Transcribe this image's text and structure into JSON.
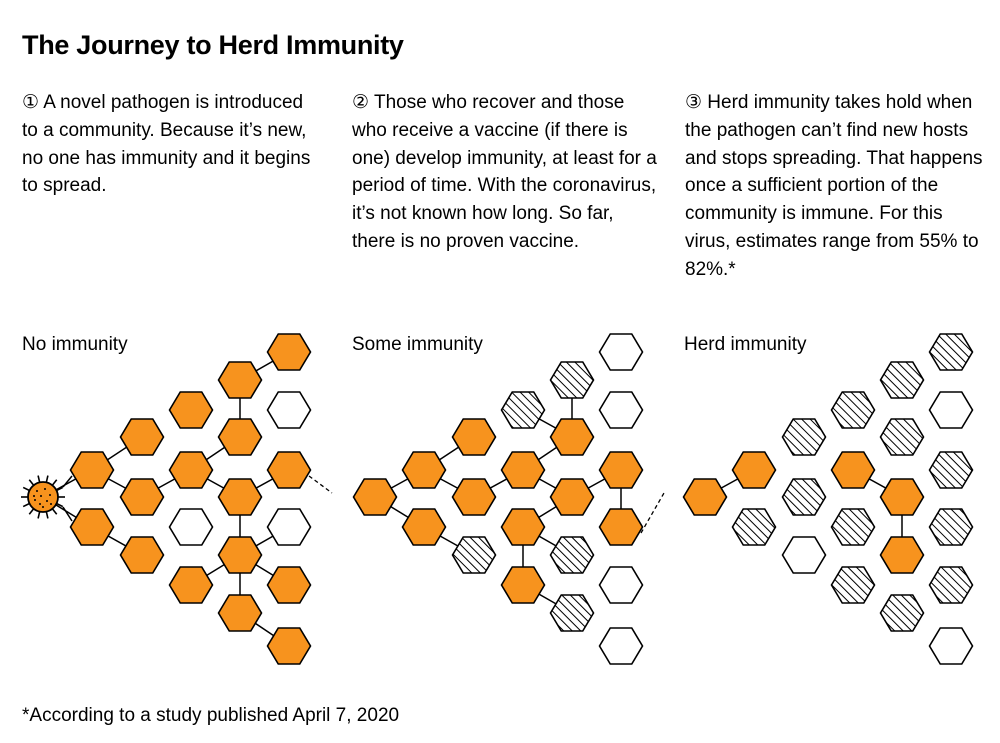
{
  "title": "The Journey to Herd Immunity",
  "steps": [
    {
      "text": "① A novel pathogen is introduced to a community. Because it’s new, no one has immunity and it begins to spread."
    },
    {
      "text": "② Those who recover and those who receive a vaccine (if there is one) develop immunity, at least for a period of time. With the coronavirus, it’s not known how long. So far, there is no proven vaccine."
    },
    {
      "text": "③ Herd immunity takes hold when the pathogen can’t find new hosts and stops spreading. That happens once a sufficient portion of the community is immune. For this virus, estimates range from 55% to 82%.*"
    }
  ],
  "panels": [
    {
      "label": "No immunity"
    },
    {
      "label": "Some immunity"
    },
    {
      "label": "Herd immunity"
    }
  ],
  "footnote": "*According to a study published April 7, 2020",
  "colors": {
    "infected": "#f7931e",
    "immune_hatch": "#000000",
    "susceptible": "#ffffff",
    "stroke": "#000000"
  },
  "legend_states": [
    "infected",
    "immune",
    "susceptible"
  ]
}
